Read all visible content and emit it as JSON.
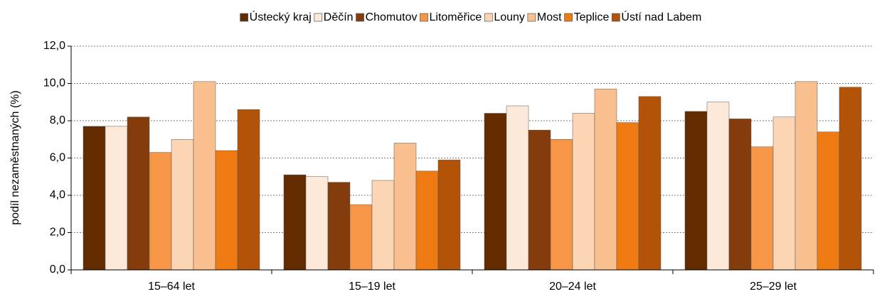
{
  "chart_data": {
    "type": "bar",
    "y_label": "podíl nezaměstnaných (%)",
    "categories": [
      "15–64 let",
      "15–19 let",
      "20–24 let",
      "25–29 let"
    ],
    "series": [
      {
        "name": "Ústecký kraj",
        "color": "#632b00",
        "values": [
          7.7,
          5.1,
          8.4,
          8.5
        ]
      },
      {
        "name": "Děčín",
        "color": "#fde9d9",
        "values": [
          7.7,
          5.0,
          8.8,
          9.0
        ]
      },
      {
        "name": "Chomutov",
        "color": "#843c0c",
        "values": [
          8.2,
          4.7,
          7.5,
          8.1
        ]
      },
      {
        "name": "Litoměřice",
        "color": "#f79646",
        "values": [
          6.3,
          3.5,
          7.0,
          6.6
        ]
      },
      {
        "name": "Louny",
        "color": "#fcd5b4",
        "values": [
          7.0,
          4.8,
          8.4,
          8.2
        ]
      },
      {
        "name": "Most",
        "color": "#fabf8f",
        "values": [
          10.1,
          6.8,
          9.7,
          10.1
        ]
      },
      {
        "name": "Teplice",
        "color": "#f07a12",
        "values": [
          6.4,
          5.3,
          7.9,
          7.4
        ]
      },
      {
        "name": "Ústí nad Labem",
        "color": "#b35309",
        "values": [
          8.6,
          5.9,
          9.3,
          9.8
        ]
      }
    ],
    "ylim": [
      0,
      12
    ],
    "yticks": [
      {
        "value": 0,
        "label": "0,0"
      },
      {
        "value": 2,
        "label": "2,0"
      },
      {
        "value": 4,
        "label": "4,0"
      },
      {
        "value": 6,
        "label": "6,0"
      },
      {
        "value": 8,
        "label": "8,0"
      },
      {
        "value": 10,
        "label": "10,0"
      },
      {
        "value": 12,
        "label": "12,0"
      }
    ],
    "grid": true,
    "legend": "top"
  }
}
